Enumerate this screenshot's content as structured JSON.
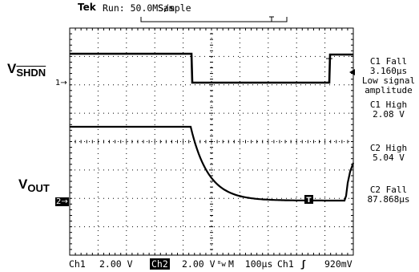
{
  "header": {
    "brand": "Tek",
    "status": "Run: 50.0MS/s",
    "acquisition": "Sample"
  },
  "signals": {
    "vshdn": {
      "main": "V",
      "sub": "SHDN",
      "channel_marker": "1→"
    },
    "vout": {
      "main": "V",
      "sub": "OUT",
      "channel_marker": "2→"
    }
  },
  "measurements": [
    {
      "lines": [
        "C1 Fall",
        "3.160µs",
        "Low signal",
        "amplitude"
      ]
    },
    {
      "lines": [
        "C1 High",
        "2.08 V"
      ]
    },
    {
      "lines": [
        "C2 High",
        "5.04 V"
      ]
    },
    {
      "lines": [
        "C2 Fall",
        "87.868µs"
      ]
    }
  ],
  "footer": {
    "ch1_label": "Ch1",
    "ch1_scale": "2.00 V",
    "ch2_label": "Ch2",
    "ch2_scale": "2.00 V",
    "bw_symbol": "ᴮw",
    "timebase": "M  100µs",
    "trigger_source": "Ch1",
    "trigger_slope": "ʃ",
    "trigger_level": "920mV"
  },
  "colors": {
    "trace": "#000000",
    "background": "#ffffff",
    "grid": "#000000"
  }
}
